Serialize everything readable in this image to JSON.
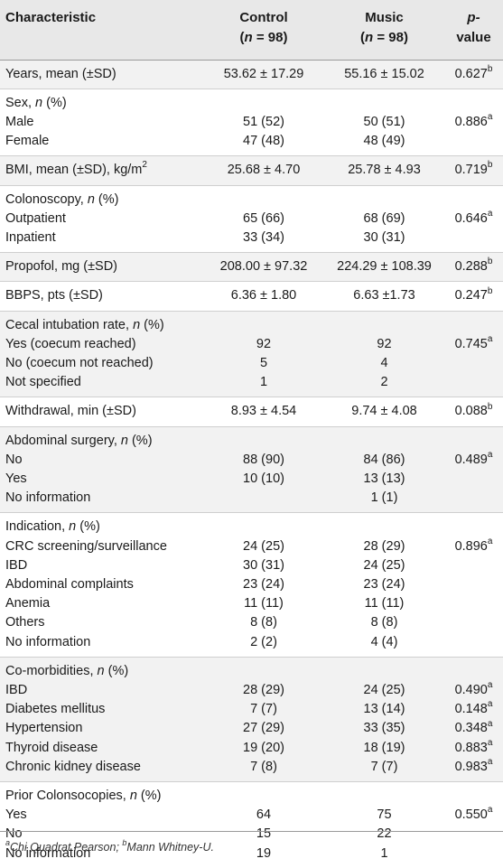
{
  "header": {
    "characteristic": "Characteristic",
    "control_label": "Control",
    "music_label": "Music",
    "n_label": "n",
    "control_n": " = 98)",
    "music_n": " = 98)",
    "p_label": "p-",
    "value_label": "value"
  },
  "groups": [
    {
      "rows": [
        {
          "label": "Years, mean (±SD)",
          "control": "53.62 ± 17.29",
          "music": "55.16 ± 15.02",
          "p": "0.627",
          "sup": "b"
        }
      ]
    },
    {
      "heading": "Sex, ",
      "heading_it": "n",
      "heading_tail": " (%)",
      "rows": [
        {
          "label": "Male",
          "control": "51 (52)",
          "music": "50 (51)",
          "p": "0.886",
          "sup": "a"
        },
        {
          "label": "Female",
          "control": "47 (48)",
          "music": "48 (49)",
          "p": "",
          "sup": ""
        }
      ]
    },
    {
      "rows": [
        {
          "label": "BMI, mean (±SD), kg/m",
          "label_sup": "2",
          "control": "25.68 ± 4.70",
          "music": "25.78 ± 4.93",
          "p": "0.719",
          "sup": "b"
        }
      ]
    },
    {
      "heading": "Colonoscopy, ",
      "heading_it": "n",
      "heading_tail": " (%)",
      "rows": [
        {
          "label": "Outpatient",
          "control": "65 (66)",
          "music": "68 (69)",
          "p": "0.646",
          "sup": "a"
        },
        {
          "label": "Inpatient",
          "control": "33 (34)",
          "music": "30 (31)",
          "p": "",
          "sup": ""
        }
      ]
    },
    {
      "rows": [
        {
          "label": "Propofol, mg (±SD)",
          "control": "208.00 ± 97.32",
          "music": "224.29 ± 108.39",
          "p": "0.288",
          "sup": "b"
        }
      ]
    },
    {
      "rows": [
        {
          "label": "BBPS, pts (±SD)",
          "control": "6.36 ± 1.80",
          "music": "6.63 ±1.73",
          "p": "0.247",
          "sup": "b"
        }
      ]
    },
    {
      "heading": "Cecal intubation rate, ",
      "heading_it": "n",
      "heading_tail": " (%)",
      "rows": [
        {
          "label": "Yes (coecum reached)",
          "control": "92",
          "music": "92",
          "p": "0.745",
          "sup": "a"
        },
        {
          "label": "No (coecum not reached)",
          "control": "5",
          "music": "4",
          "p": "",
          "sup": ""
        },
        {
          "label": "Not specified",
          "control": "1",
          "music": "2",
          "p": "",
          "sup": ""
        }
      ]
    },
    {
      "rows": [
        {
          "label": "Withdrawal, min (±SD)",
          "control": "8.93 ± 4.54",
          "music": "9.74 ± 4.08",
          "p": "0.088",
          "sup": "b"
        }
      ]
    },
    {
      "heading": "Abdominal surgery, ",
      "heading_it": "n",
      "heading_tail": " (%)",
      "rows": [
        {
          "label": "No",
          "control": "88 (90)",
          "music": "84 (86)",
          "p": "0.489",
          "sup": "a"
        },
        {
          "label": "Yes",
          "control": "10 (10)",
          "music": "13 (13)",
          "p": "",
          "sup": ""
        },
        {
          "label": "No information",
          "control": "",
          "music": "1 (1)",
          "p": "",
          "sup": ""
        }
      ]
    },
    {
      "heading": "Indication, ",
      "heading_it": "n",
      "heading_tail": " (%)",
      "rows": [
        {
          "label": "CRC screening/surveillance",
          "control": "24 (25)",
          "music": "28 (29)",
          "p": "0.896",
          "sup": "a"
        },
        {
          "label": "IBD",
          "control": "30 (31)",
          "music": "24 (25)",
          "p": "",
          "sup": ""
        },
        {
          "label": "Abdominal complaints",
          "control": "23 (24)",
          "music": "23 (24)",
          "p": "",
          "sup": ""
        },
        {
          "label": "Anemia",
          "control": "11 (11)",
          "music": "11 (11)",
          "p": "",
          "sup": ""
        },
        {
          "label": "Others",
          "control": "8 (8)",
          "music": "8 (8)",
          "p": "",
          "sup": ""
        },
        {
          "label": "No information",
          "control": "2 (2)",
          "music": "4 (4)",
          "p": "",
          "sup": ""
        }
      ]
    },
    {
      "heading": "Co-morbidities, ",
      "heading_it": "n",
      "heading_tail": " (%)",
      "rows": [
        {
          "label": "IBD",
          "control": "28 (29)",
          "music": "24 (25)",
          "p": "0.490",
          "sup": "a"
        },
        {
          "label": "Diabetes mellitus",
          "control": "7 (7)",
          "music": "13 (14)",
          "p": "0.148",
          "sup": "a"
        },
        {
          "label": "Hypertension",
          "control": "27 (29)",
          "music": "33 (35)",
          "p": "0.348",
          "sup": "a"
        },
        {
          "label": "Thyroid disease",
          "control": "19 (20)",
          "music": "18 (19)",
          "p": "0.883",
          "sup": "a"
        },
        {
          "label": "Chronic kidney disease",
          "control": "7 (8)",
          "music": "7 (7)",
          "p": "0.983",
          "sup": "a"
        }
      ]
    },
    {
      "heading": "Prior Colonsocopies, ",
      "heading_it": "n",
      "heading_tail": " (%)",
      "rows": [
        {
          "label": "Yes",
          "control": "64",
          "music": "75",
          "p": "0.550",
          "sup": "a"
        },
        {
          "label": "No",
          "control": "15",
          "music": "22",
          "p": "",
          "sup": ""
        },
        {
          "label": "No information",
          "control": "19",
          "music": "1",
          "p": "",
          "sup": ""
        }
      ]
    }
  ],
  "footnote": {
    "a_mark": "a",
    "a_text": "Chi Quadrat Pearson; ",
    "b_mark": "b",
    "b_text": "Mann Whitney-U."
  }
}
